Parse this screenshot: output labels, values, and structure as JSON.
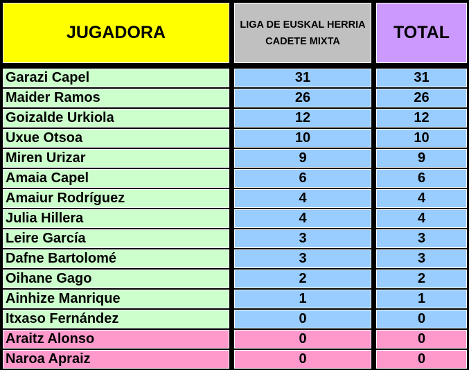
{
  "headers": {
    "player": "JUGADORA",
    "league": "LIGA DE EUSKAL HERRIA CADETE MIXTA",
    "total": "TOTAL"
  },
  "colors": {
    "header_player": "#ffff00",
    "header_league": "#c0c0c0",
    "header_total": "#cc99ff",
    "row_name_default": "#ccffcc",
    "row_value_default": "#99ccff",
    "row_highlight": "#ff99cc"
  },
  "rows": [
    {
      "name": "Garazi Capel",
      "league": "31",
      "total": "31",
      "highlight": false
    },
    {
      "name": "Maider Ramos",
      "league": "26",
      "total": "26",
      "highlight": false
    },
    {
      "name": "Goizalde Urkiola",
      "league": "12",
      "total": "12",
      "highlight": false
    },
    {
      "name": "Uxue Otsoa",
      "league": "10",
      "total": "10",
      "highlight": false
    },
    {
      "name": "Miren Urizar",
      "league": "9",
      "total": "9",
      "highlight": false
    },
    {
      "name": "Amaia Capel",
      "league": "6",
      "total": "6",
      "highlight": false
    },
    {
      "name": "Amaiur Rodríguez",
      "league": "4",
      "total": "4",
      "highlight": false
    },
    {
      "name": "Julia Hillera",
      "league": "4",
      "total": "4",
      "highlight": false
    },
    {
      "name": "Leire García",
      "league": "3",
      "total": "3",
      "highlight": false
    },
    {
      "name": "Dafne Bartolomé",
      "league": "3",
      "total": "3",
      "highlight": false
    },
    {
      "name": "Oihane Gago",
      "league": "2",
      "total": "2",
      "highlight": false
    },
    {
      "name": "Ainhize Manrique",
      "league": "1",
      "total": "1",
      "highlight": false
    },
    {
      "name": "Itxaso Fernández",
      "league": "0",
      "total": "0",
      "highlight": false
    },
    {
      "name": "Araitz Alonso",
      "league": "0",
      "total": "0",
      "highlight": true
    },
    {
      "name": "Naroa Apraiz",
      "league": "0",
      "total": "0",
      "highlight": true
    }
  ]
}
